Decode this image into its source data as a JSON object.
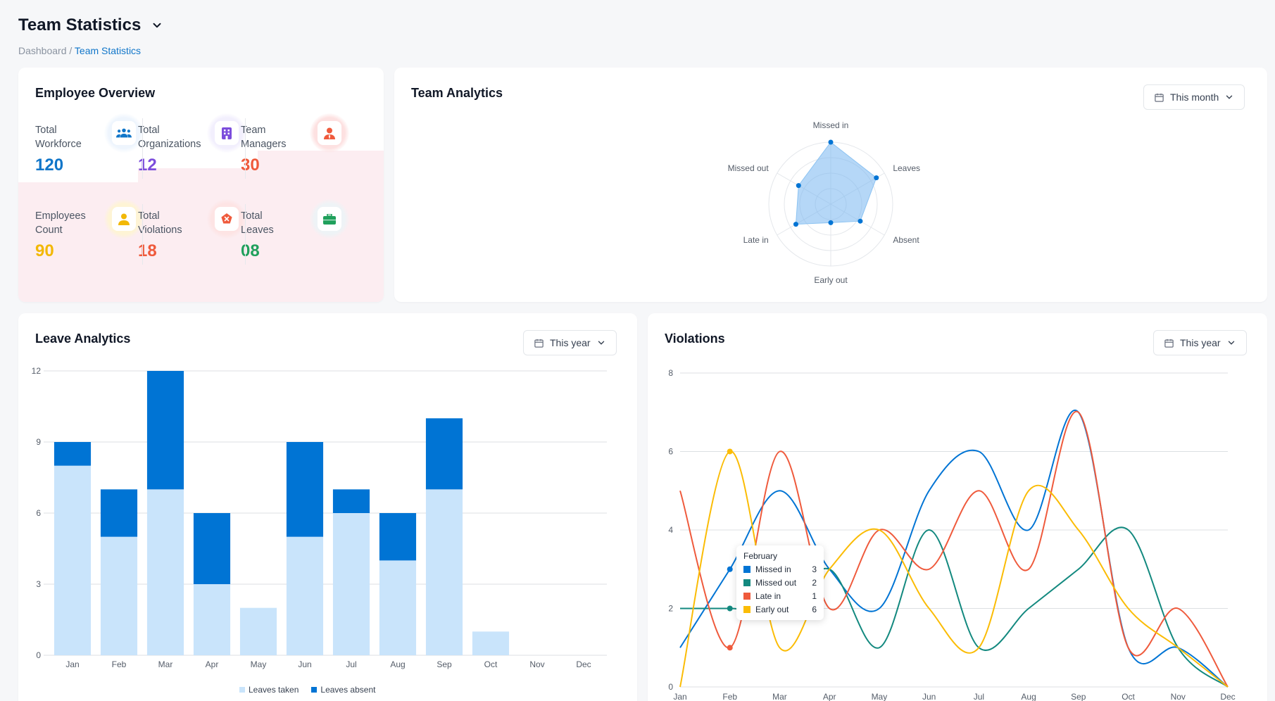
{
  "header": {
    "title": "Team Statistics",
    "breadcrumb_root": "Dashboard",
    "breadcrumb_sep": " / ",
    "breadcrumb_current": "Team Statistics"
  },
  "employee_overview": {
    "title": "Employee Overview",
    "stats": [
      {
        "label": "Total\nWorkforce",
        "value": "120",
        "color": "#1176c9",
        "icon": "team-icon"
      },
      {
        "label": "Total\nOrganizations",
        "value": "12",
        "color": "#7c4ddc",
        "icon": "building-icon"
      },
      {
        "label": "Team\nManagers",
        "value": "30",
        "color": "#ef5a3c",
        "icon": "manager-icon"
      },
      {
        "label": "Employees\nCount",
        "value": "90",
        "color": "#f2b807",
        "icon": "person-icon"
      },
      {
        "label": "Total\nViolations",
        "value": "18",
        "color": "#ef5a3c",
        "icon": "violation-icon"
      },
      {
        "label": "Total\nLeaves",
        "value": "08",
        "color": "#20a05c",
        "icon": "briefcase-icon"
      }
    ]
  },
  "team_analytics": {
    "title": "Team Analytics",
    "period": "This month",
    "radar": {
      "axes": [
        "Missed in",
        "Leaves",
        "Absent",
        "Early out",
        "Late in",
        "Missed out"
      ],
      "values": [
        1.0,
        0.85,
        0.55,
        0.3,
        0.65,
        0.6
      ],
      "color": "#0074d4"
    }
  },
  "leave_analytics": {
    "title": "Leave Analytics",
    "period": "This year",
    "chart_data": {
      "type": "bar",
      "stacked": true,
      "categories": [
        "Jan",
        "Feb",
        "Mar",
        "Apr",
        "May",
        "Jun",
        "Jul",
        "Aug",
        "Sep",
        "Oct",
        "Nov",
        "Dec"
      ],
      "series": [
        {
          "name": "Leaves taken",
          "color": "#c9e4fb",
          "values": [
            8,
            5,
            7,
            3,
            2,
            5,
            6,
            4,
            7,
            1,
            0,
            0
          ]
        },
        {
          "name": "Leaves absent",
          "color": "#0074d4",
          "values": [
            1,
            2,
            5,
            3,
            0,
            4,
            1,
            2,
            3,
            0,
            0,
            0
          ]
        }
      ],
      "yticks": [
        0,
        3,
        6,
        9,
        12
      ],
      "ylim": [
        0,
        12
      ]
    }
  },
  "violations": {
    "title": "Violations",
    "period": "This year",
    "chart_data": {
      "type": "line",
      "categories": [
        "Jan",
        "Feb",
        "Mar",
        "Apr",
        "May",
        "Jun",
        "Jul",
        "Aug",
        "Sep",
        "Oct",
        "Nov",
        "Dec"
      ],
      "series": [
        {
          "name": "Missed in",
          "color": "#0074d4",
          "values": [
            1,
            3,
            5,
            3,
            2,
            5,
            6,
            4,
            7,
            1,
            1,
            0
          ]
        },
        {
          "name": "Missed out",
          "color": "#13897f",
          "values": [
            2,
            2,
            2,
            3,
            1,
            4,
            1,
            2,
            3,
            4,
            1,
            0
          ]
        },
        {
          "name": "Late in",
          "color": "#ef5a3c",
          "values": [
            5,
            1,
            6,
            2,
            4,
            3,
            5,
            3,
            7,
            1,
            2,
            0
          ]
        },
        {
          "name": "Early out",
          "color": "#fbbc05",
          "values": [
            0,
            6,
            1,
            3,
            4,
            2,
            1,
            5,
            4,
            2,
            1,
            0
          ]
        }
      ],
      "yticks": [
        0,
        2,
        4,
        6,
        8
      ],
      "ylim": [
        0,
        8
      ],
      "tooltip": {
        "title": "February",
        "rows": [
          {
            "name": "Missed in",
            "value": "3"
          },
          {
            "name": "Missed out",
            "value": "2"
          },
          {
            "name": "Late in",
            "value": "1"
          },
          {
            "name": "Early out",
            "value": "6"
          }
        ]
      }
    }
  }
}
